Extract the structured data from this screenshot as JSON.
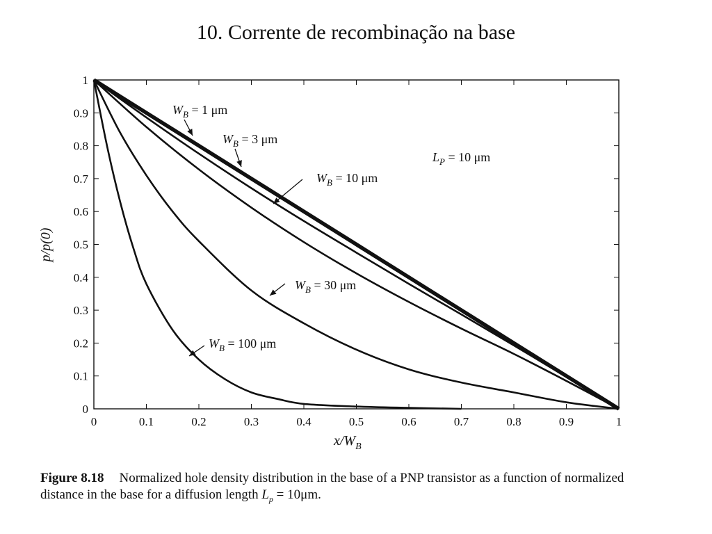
{
  "page": {
    "title": "10. Corrente de recombinação na base"
  },
  "caption": {
    "label": "Figure 8.18",
    "text": "Normalized hole density distribution in the base of a PNP transistor as a function of normalized distance in the base for a diffusion length L p = 10μm."
  },
  "chart_data": {
    "type": "line",
    "xlabel": "x/W B",
    "ylabel": "p/p(0)",
    "xlim": [
      0,
      1
    ],
    "ylim": [
      0,
      1
    ],
    "xticks": [
      "0",
      "0.1",
      "0.2",
      "0.3",
      "0.4",
      "0.5",
      "0.6",
      "0.7",
      "0.8",
      "0.9",
      "1"
    ],
    "yticks": [
      "0",
      "0.1",
      "0.2",
      "0.3",
      "0.4",
      "0.5",
      "0.6",
      "0.7",
      "0.8",
      "0.9",
      "1"
    ],
    "annotation": "L P = 10 μm",
    "series": [
      {
        "name": "W B = 1 μm",
        "x": [
          0,
          0.1,
          0.2,
          0.3,
          0.4,
          0.5,
          0.6,
          0.7,
          0.8,
          0.9,
          1
        ],
        "y": [
          1,
          0.9,
          0.8,
          0.7,
          0.6,
          0.5,
          0.4,
          0.3,
          0.2,
          0.1,
          0
        ]
      },
      {
        "name": "W B = 3 μm",
        "x": [
          0,
          0.1,
          0.2,
          0.3,
          0.4,
          0.5,
          0.6,
          0.7,
          0.8,
          0.9,
          1
        ],
        "y": [
          1,
          0.886,
          0.776,
          0.671,
          0.571,
          0.475,
          0.38,
          0.287,
          0.193,
          0.097,
          0
        ]
      },
      {
        "name": "W B = 10 μm",
        "x": [
          0,
          0.1,
          0.2,
          0.3,
          0.4,
          0.5,
          0.6,
          0.7,
          0.8,
          0.9,
          1
        ],
        "y": [
          1,
          0.857,
          0.728,
          0.612,
          0.507,
          0.412,
          0.325,
          0.244,
          0.167,
          0.085,
          0
        ]
      },
      {
        "name": "W B = 30 μm",
        "x": [
          0,
          0.05,
          0.1,
          0.15,
          0.2,
          0.3,
          0.4,
          0.5,
          0.6,
          0.7,
          0.8,
          0.9,
          1
        ],
        "y": [
          1,
          0.84,
          0.71,
          0.6,
          0.51,
          0.36,
          0.26,
          0.18,
          0.12,
          0.08,
          0.05,
          0.02,
          0
        ]
      },
      {
        "name": "W B = 100 μm",
        "x": [
          0,
          0.025,
          0.05,
          0.075,
          0.1,
          0.15,
          0.2,
          0.25,
          0.3,
          0.35,
          0.4,
          0.5,
          0.6,
          0.7
        ],
        "y": [
          1,
          0.8,
          0.63,
          0.49,
          0.38,
          0.24,
          0.15,
          0.09,
          0.05,
          0.03,
          0.015,
          0.007,
          0.003,
          0
        ]
      }
    ]
  }
}
